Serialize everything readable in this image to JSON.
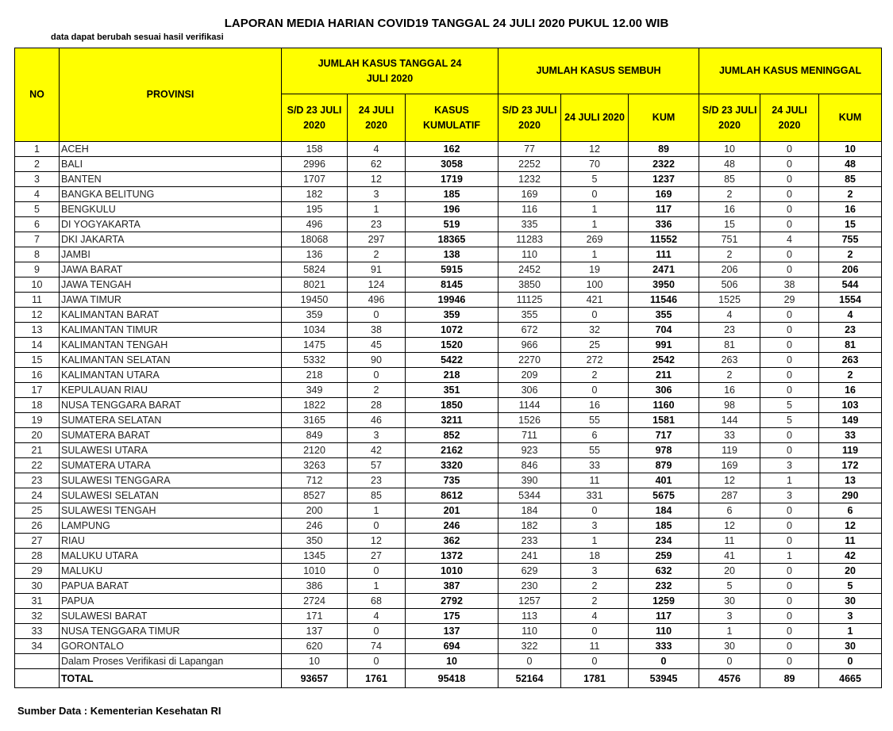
{
  "header": {
    "title": "LAPORAN MEDIA HARIAN COVID19 TANGGAL 24 JULI 2020 PUKUL 12.00 WIB",
    "subtitle": "data dapat berubah sesuai hasil verifikasi"
  },
  "table": {
    "columns": {
      "no": "NO",
      "province": "PROVINSI",
      "group_cases": "JUMLAH KASUS TANGGAL 24 JULI 2020",
      "group_recovered": "JUMLAH KASUS SEMBUH",
      "group_deaths": "JUMLAH KASUS MENINGGAL",
      "sub": [
        "S/D 23 JULI 2020",
        "24 JULI 2020",
        "KASUS KUMULATIF",
        "S/D 23 JULI 2020",
        "24 JULI 2020",
        "KUM",
        "S/D 23 JULI 2020",
        "24 JULI 2020",
        "KUM"
      ]
    },
    "rows": [
      [
        1,
        "ACEH",
        158,
        4,
        162,
        77,
        12,
        89,
        10,
        0,
        10
      ],
      [
        2,
        "BALI",
        2996,
        62,
        3058,
        2252,
        70,
        2322,
        48,
        0,
        48
      ],
      [
        3,
        "BANTEN",
        1707,
        12,
        1719,
        1232,
        5,
        1237,
        85,
        0,
        85
      ],
      [
        4,
        "BANGKA BELITUNG",
        182,
        3,
        185,
        169,
        0,
        169,
        2,
        0,
        2
      ],
      [
        5,
        "BENGKULU",
        195,
        1,
        196,
        116,
        1,
        117,
        16,
        0,
        16
      ],
      [
        6,
        "DI YOGYAKARTA",
        496,
        23,
        519,
        335,
        1,
        336,
        15,
        0,
        15
      ],
      [
        7,
        "DKI JAKARTA",
        18068,
        297,
        18365,
        11283,
        269,
        11552,
        751,
        4,
        755
      ],
      [
        8,
        "JAMBI",
        136,
        2,
        138,
        110,
        1,
        111,
        2,
        0,
        2
      ],
      [
        9,
        "JAWA BARAT",
        5824,
        91,
        5915,
        2452,
        19,
        2471,
        206,
        0,
        206
      ],
      [
        10,
        "JAWA TENGAH",
        8021,
        124,
        8145,
        3850,
        100,
        3950,
        506,
        38,
        544
      ],
      [
        11,
        "JAWA TIMUR",
        19450,
        496,
        19946,
        11125,
        421,
        11546,
        1525,
        29,
        1554
      ],
      [
        12,
        "KALIMANTAN BARAT",
        359,
        0,
        359,
        355,
        0,
        355,
        4,
        0,
        4
      ],
      [
        13,
        "KALIMANTAN TIMUR",
        1034,
        38,
        1072,
        672,
        32,
        704,
        23,
        0,
        23
      ],
      [
        14,
        "KALIMANTAN TENGAH",
        1475,
        45,
        1520,
        966,
        25,
        991,
        81,
        0,
        81
      ],
      [
        15,
        "KALIMANTAN SELATAN",
        5332,
        90,
        5422,
        2270,
        272,
        2542,
        263,
        0,
        263
      ],
      [
        16,
        "KALIMANTAN UTARA",
        218,
        0,
        218,
        209,
        2,
        211,
        2,
        0,
        2
      ],
      [
        17,
        "KEPULAUAN RIAU",
        349,
        2,
        351,
        306,
        0,
        306,
        16,
        0,
        16
      ],
      [
        18,
        "NUSA TENGGARA BARAT",
        1822,
        28,
        1850,
        1144,
        16,
        1160,
        98,
        5,
        103
      ],
      [
        19,
        "SUMATERA SELATAN",
        3165,
        46,
        3211,
        1526,
        55,
        1581,
        144,
        5,
        149
      ],
      [
        20,
        "SUMATERA BARAT",
        849,
        3,
        852,
        711,
        6,
        717,
        33,
        0,
        33
      ],
      [
        21,
        "SULAWESI UTARA",
        2120,
        42,
        2162,
        923,
        55,
        978,
        119,
        0,
        119
      ],
      [
        22,
        "SUMATERA UTARA",
        3263,
        57,
        3320,
        846,
        33,
        879,
        169,
        3,
        172
      ],
      [
        23,
        "SULAWESI TENGGARA",
        712,
        23,
        735,
        390,
        11,
        401,
        12,
        1,
        13
      ],
      [
        24,
        "SULAWESI SELATAN",
        8527,
        85,
        8612,
        5344,
        331,
        5675,
        287,
        3,
        290
      ],
      [
        25,
        "SULAWESI TENGAH",
        200,
        1,
        201,
        184,
        0,
        184,
        6,
        0,
        6
      ],
      [
        26,
        "LAMPUNG",
        246,
        0,
        246,
        182,
        3,
        185,
        12,
        0,
        12
      ],
      [
        27,
        "RIAU",
        350,
        12,
        362,
        233,
        1,
        234,
        11,
        0,
        11
      ],
      [
        28,
        "MALUKU UTARA",
        1345,
        27,
        1372,
        241,
        18,
        259,
        41,
        1,
        42
      ],
      [
        29,
        "MALUKU",
        1010,
        0,
        1010,
        629,
        3,
        632,
        20,
        0,
        20
      ],
      [
        30,
        "PAPUA BARAT",
        386,
        1,
        387,
        230,
        2,
        232,
        5,
        0,
        5
      ],
      [
        31,
        "PAPUA",
        2724,
        68,
        2792,
        1257,
        2,
        1259,
        30,
        0,
        30
      ],
      [
        32,
        "SULAWESI BARAT",
        171,
        4,
        175,
        113,
        4,
        117,
        3,
        0,
        3
      ],
      [
        33,
        "NUSA TENGGARA TIMUR",
        137,
        0,
        137,
        110,
        0,
        110,
        1,
        0,
        1
      ],
      [
        34,
        "GORONTALO",
        620,
        74,
        694,
        322,
        11,
        333,
        30,
        0,
        30
      ]
    ],
    "pending": {
      "label": "Dalam Proses Verifikasi di Lapangan",
      "values": [
        10,
        0,
        10,
        0,
        0,
        0,
        0,
        0,
        0
      ]
    },
    "total": {
      "label": "TOTAL",
      "values": [
        93657,
        1761,
        95418,
        52164,
        1781,
        53945,
        4576,
        89,
        4665
      ]
    }
  },
  "footer": {
    "source": "Sumber Data : Kementerian Kesehatan RI"
  }
}
